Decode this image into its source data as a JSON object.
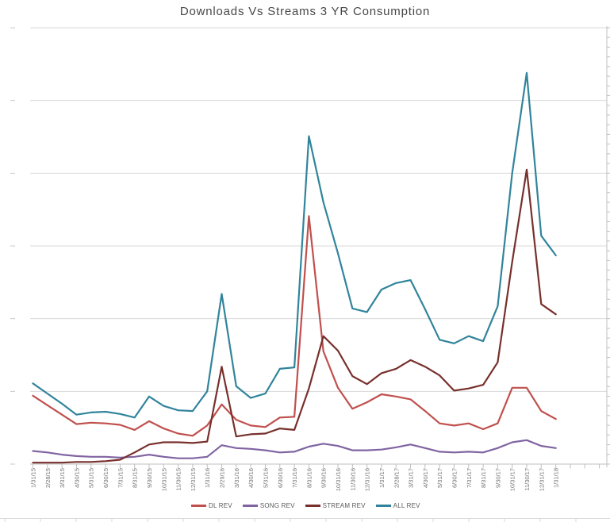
{
  "chart": {
    "title": "Downloads Vs Streams 3 YR Consumption"
  },
  "chart_data": {
    "type": "line",
    "title": "Downloads Vs Streams 3 YR Consumption",
    "xlabel": "",
    "ylabel": "",
    "x_labels_rotation": -90,
    "grid": true,
    "legend_position": "bottom",
    "y_axis_labels_visible": false,
    "ylim": [
      0,
      600
    ],
    "y_gridline_step": 100,
    "categories": [
      "1/31/15",
      "2/28/15",
      "3/31/15",
      "4/30/15",
      "5/31/15",
      "6/30/15",
      "7/31/15",
      "8/31/15",
      "9/30/15",
      "10/31/15",
      "11/30/15",
      "12/31/15",
      "1/31/16",
      "2/29/16",
      "3/31/16",
      "4/30/16",
      "5/31/16",
      "6/30/16",
      "7/31/16",
      "8/31/16",
      "9/30/16",
      "10/31/16",
      "11/30/16",
      "12/31/16",
      "1/31/17",
      "2/28/17",
      "3/31/17",
      "4/30/17",
      "5/31/17",
      "6/30/17",
      "7/31/17",
      "8/31/17",
      "9/30/17",
      "10/31/17",
      "11/30/17",
      "12/31/17",
      "1/31/18"
    ],
    "series": [
      {
        "name": "DL REV",
        "color": "#C0504D",
        "values": [
          94,
          81,
          68,
          55,
          57,
          56,
          54,
          47,
          59,
          49,
          42,
          39,
          53,
          82,
          61,
          53,
          51,
          64,
          65,
          341,
          155,
          105,
          76,
          85,
          96,
          93,
          89,
          73,
          56,
          53,
          56,
          48,
          56,
          105,
          105,
          73,
          62
        ]
      },
      {
        "name": "SONG REV",
        "color": "#8064A2",
        "values": [
          18,
          16,
          13,
          11,
          10,
          10,
          9,
          10,
          13,
          10,
          8,
          8,
          10,
          26,
          22,
          21,
          19,
          16,
          17,
          24,
          28,
          25,
          19,
          19,
          20,
          23,
          27,
          22,
          17,
          16,
          17,
          16,
          22,
          30,
          33,
          25,
          22
        ]
      },
      {
        "name": "STREAM REV",
        "color": "#77302C",
        "values": [
          2,
          2,
          2,
          3,
          3,
          4,
          6,
          16,
          27,
          30,
          30,
          29,
          31,
          134,
          38,
          41,
          42,
          49,
          47,
          104,
          176,
          156,
          121,
          110,
          125,
          131,
          143,
          134,
          122,
          101,
          104,
          109,
          140,
          278,
          405,
          220,
          206
        ]
      },
      {
        "name": "ALL REV",
        "color": "#31849B",
        "values": [
          111,
          97,
          83,
          68,
          71,
          72,
          69,
          64,
          93,
          80,
          74,
          73,
          100,
          234,
          107,
          91,
          97,
          131,
          133,
          451,
          360,
          290,
          214,
          209,
          240,
          249,
          253,
          213,
          171,
          166,
          176,
          169,
          217,
          400,
          538,
          314,
          287
        ]
      }
    ]
  },
  "colors": {
    "gridline": "#D9D9D9",
    "axis": "#BFBFBF",
    "tick": "#BFBFBF",
    "minor_tick": "#C9C9C9",
    "x_label": "#737373",
    "legend_text": "#595959",
    "title": "#484848",
    "sheet_line": "#D9D9D9"
  }
}
